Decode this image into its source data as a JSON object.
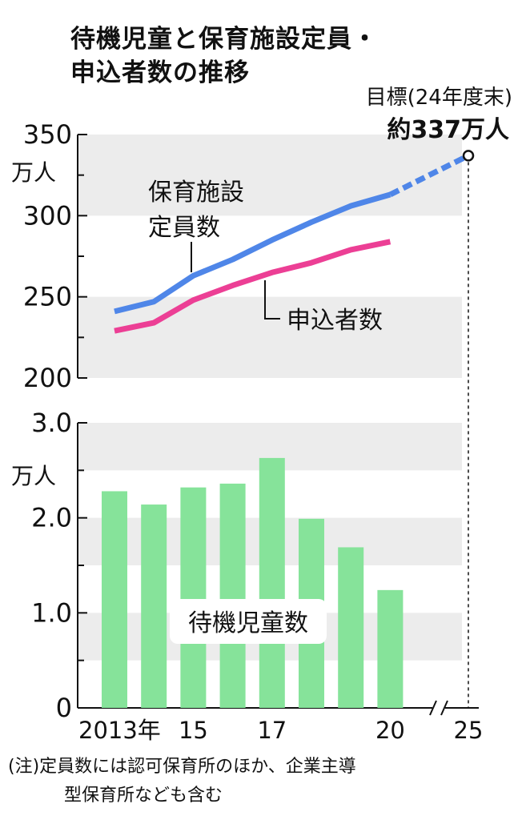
{
  "title_lines": [
    "待機児童と保育施設定員・",
    "申込者数の推移"
  ],
  "note_lines": [
    "(注)定員数には認可保育所のほか、企業主導",
    "型保育所なども含む"
  ],
  "colors": {
    "capacity": "#4f86e8",
    "applicants": "#ec3f95",
    "waiting": "#86e39a",
    "band": "#ececec"
  },
  "chart_data": [
    {
      "type": "line",
      "unit_label": "万人",
      "ylim": [
        200,
        350
      ],
      "y_ticks": [
        "350",
        "300",
        "250",
        "200"
      ],
      "x": [
        2013,
        2014,
        2015,
        2016,
        2017,
        2018,
        2019,
        2020
      ],
      "series": [
        {
          "name": "保育施設定員数",
          "values": [
            241,
            247,
            263,
            273,
            285,
            296,
            306,
            313
          ]
        },
        {
          "name": "申込者数",
          "values": [
            229,
            234,
            248,
            257,
            265,
            271,
            279,
            284
          ]
        }
      ],
      "target": {
        "x": 2025,
        "value": 337,
        "label": "目標(24年度末)",
        "value_label": "約337万人"
      }
    },
    {
      "type": "bar",
      "unit_label": "万人",
      "ylim": [
        0,
        3.0
      ],
      "y_ticks": [
        "3.0",
        "2.0",
        "1.0",
        "0"
      ],
      "x": [
        2013,
        2014,
        2015,
        2016,
        2017,
        2018,
        2019,
        2020
      ],
      "series": [
        {
          "name": "待機児童数",
          "values": [
            2.28,
            2.14,
            2.32,
            2.36,
            2.63,
            1.99,
            1.69,
            1.24
          ]
        }
      ],
      "x_tick_labels": [
        "2013年",
        "15",
        "17",
        "20",
        "25"
      ]
    }
  ]
}
